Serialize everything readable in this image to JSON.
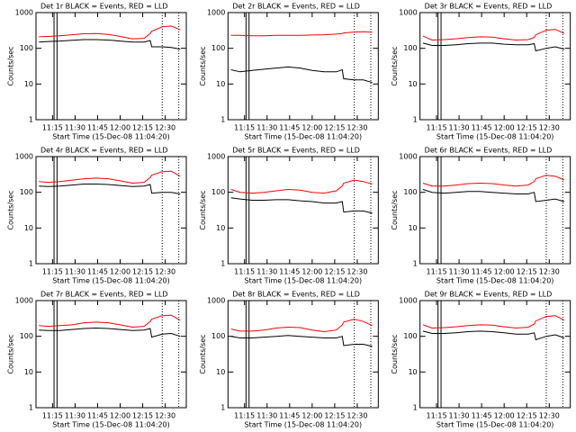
{
  "chart_data": [
    {
      "type": "line",
      "title": "Det 1r BLACK = Events, RED = LLD",
      "ylabel": "Counts/sec",
      "xlabel": "Start Time (15-Dec-08 11:04:20)",
      "log_y": true,
      "ylim": [
        1,
        1000
      ],
      "yticks": [
        1,
        10,
        100,
        1000
      ],
      "xlim": [
        "11:04",
        "12:44"
      ],
      "xticks": [
        "11:15",
        "11:30",
        "11:45",
        "12:00",
        "12:15",
        "12:30"
      ],
      "solid_lines": [
        "11:16",
        "11:18"
      ],
      "dotted_lines": [
        "12:28",
        "12:39"
      ],
      "x": [
        "11:06",
        "11:12",
        "11:20",
        "11:28",
        "11:36",
        "11:44",
        "11:52",
        "12:00",
        "12:08",
        "12:16",
        "12:20",
        "12:21",
        "12:28",
        "12:34",
        "12:40"
      ],
      "series": [
        {
          "color": "#000000",
          "values": [
            150,
            155,
            160,
            168,
            175,
            175,
            170,
            160,
            150,
            150,
            165,
            110,
            110,
            105,
            95
          ]
        },
        {
          "color": "#ff0000",
          "values": [
            210,
            215,
            225,
            240,
            255,
            260,
            245,
            215,
            185,
            190,
            260,
            300,
            400,
            420,
            330
          ]
        }
      ]
    },
    {
      "type": "line",
      "title": "Det 2r BLACK = Events, RED = LLD",
      "ylabel": "Counts/sec",
      "xlabel": "Start Time (15-Dec-08 11:04:20)",
      "log_y": true,
      "ylim": [
        1,
        1000
      ],
      "yticks": [
        1,
        10,
        100,
        1000
      ],
      "xlim": [
        "11:04",
        "12:44"
      ],
      "xticks": [
        "11:15",
        "11:30",
        "11:45",
        "12:00",
        "12:15",
        "12:30"
      ],
      "solid_lines": [
        "11:16",
        "11:18"
      ],
      "dotted_lines": [
        "12:28",
        "12:39"
      ],
      "x": [
        "11:06",
        "11:12",
        "11:20",
        "11:28",
        "11:36",
        "11:44",
        "11:52",
        "12:00",
        "12:08",
        "12:16",
        "12:20",
        "12:21",
        "12:28",
        "12:34",
        "12:40"
      ],
      "series": [
        {
          "color": "#000000",
          "values": [
            25,
            22,
            24,
            26,
            28,
            30,
            28,
            24,
            22,
            22,
            25,
            14,
            13,
            13,
            11
          ]
        },
        {
          "color": "#ff0000",
          "values": [
            230,
            230,
            225,
            225,
            230,
            230,
            230,
            235,
            240,
            250,
            260,
            270,
            285,
            290,
            280
          ]
        }
      ]
    },
    {
      "type": "line",
      "title": "Det 3r BLACK = Events, RED = LLD",
      "ylabel": "Counts/sec",
      "xlabel": "Start Time (15-Dec-08 11:04:20)",
      "log_y": true,
      "ylim": [
        1,
        1000
      ],
      "yticks": [
        1,
        10,
        100,
        1000
      ],
      "xlim": [
        "11:04",
        "12:44"
      ],
      "xticks": [
        "11:15",
        "11:30",
        "11:45",
        "12:00",
        "12:15",
        "12:30"
      ],
      "solid_lines": [
        "11:16",
        "11:18"
      ],
      "dotted_lines": [
        "12:28",
        "12:39"
      ],
      "x": [
        "11:06",
        "11:12",
        "11:20",
        "11:28",
        "11:36",
        "11:44",
        "11:52",
        "12:00",
        "12:08",
        "12:16",
        "12:20",
        "12:21",
        "12:28",
        "12:34",
        "12:40"
      ],
      "series": [
        {
          "color": "#000000",
          "values": [
            140,
            120,
            120,
            125,
            135,
            140,
            140,
            130,
            125,
            125,
            135,
            85,
            100,
            110,
            95
          ]
        },
        {
          "color": "#ff0000",
          "values": [
            220,
            170,
            175,
            185,
            200,
            210,
            205,
            185,
            170,
            175,
            200,
            240,
            320,
            340,
            260
          ]
        }
      ]
    },
    {
      "type": "line",
      "title": "Det 4r BLACK = Events, RED = LLD",
      "ylabel": "Counts/sec",
      "xlabel": "Start Time (15-Dec-08 11:04:20)",
      "log_y": true,
      "ylim": [
        1,
        1000
      ],
      "yticks": [
        1,
        10,
        100,
        1000
      ],
      "xlim": [
        "11:04",
        "12:44"
      ],
      "xticks": [
        "11:15",
        "11:30",
        "11:45",
        "12:00",
        "12:15",
        "12:30"
      ],
      "solid_lines": [
        "11:16",
        "11:18"
      ],
      "dotted_lines": [
        "12:28",
        "12:39"
      ],
      "x": [
        "11:06",
        "11:12",
        "11:20",
        "11:28",
        "11:36",
        "11:44",
        "11:52",
        "12:00",
        "12:08",
        "12:16",
        "12:20",
        "12:21",
        "12:28",
        "12:34",
        "12:40"
      ],
      "series": [
        {
          "color": "#000000",
          "values": [
            150,
            145,
            150,
            160,
            170,
            170,
            165,
            155,
            145,
            150,
            165,
            95,
            100,
            100,
            90
          ]
        },
        {
          "color": "#ff0000",
          "values": [
            200,
            190,
            200,
            220,
            240,
            250,
            240,
            210,
            180,
            190,
            260,
            300,
            380,
            390,
            280
          ]
        }
      ]
    },
    {
      "type": "line",
      "title": "Det 5r BLACK = Events, RED = LLD",
      "ylabel": "Counts/sec",
      "xlabel": "Start Time (15-Dec-08 11:04:20)",
      "log_y": true,
      "ylim": [
        1,
        1000
      ],
      "yticks": [
        1,
        10,
        100,
        1000
      ],
      "xlim": [
        "11:04",
        "12:44"
      ],
      "xticks": [
        "11:15",
        "11:30",
        "11:45",
        "12:00",
        "12:15",
        "12:30"
      ],
      "solid_lines": [
        "11:16",
        "11:18"
      ],
      "dotted_lines": [
        "12:28",
        "12:39"
      ],
      "x": [
        "11:06",
        "11:12",
        "11:20",
        "11:28",
        "11:36",
        "11:44",
        "11:52",
        "12:00",
        "12:08",
        "12:16",
        "12:20",
        "12:21",
        "12:28",
        "12:34",
        "12:40"
      ],
      "series": [
        {
          "color": "#000000",
          "values": [
            70,
            65,
            60,
            60,
            62,
            62,
            58,
            55,
            50,
            50,
            55,
            28,
            30,
            30,
            26
          ]
        },
        {
          "color": "#ff0000",
          "values": [
            120,
            100,
            95,
            100,
            110,
            120,
            115,
            100,
            95,
            110,
            150,
            180,
            220,
            200,
            170
          ]
        }
      ]
    },
    {
      "type": "line",
      "title": "Det 6r BLACK = Events, RED = LLD",
      "ylabel": "Counts/sec",
      "xlabel": "Start Time (15-Dec-08 11:04:20)",
      "log_y": true,
      "ylim": [
        1,
        1000
      ],
      "yticks": [
        1,
        10,
        100,
        1000
      ],
      "xlim": [
        "11:04",
        "12:44"
      ],
      "xticks": [
        "11:15",
        "11:30",
        "11:45",
        "12:00",
        "12:15",
        "12:30"
      ],
      "solid_lines": [
        "11:16",
        "11:18"
      ],
      "dotted_lines": [
        "12:28",
        "12:39"
      ],
      "x": [
        "11:06",
        "11:12",
        "11:20",
        "11:28",
        "11:36",
        "11:44",
        "11:52",
        "12:00",
        "12:08",
        "12:16",
        "12:20",
        "12:21",
        "12:28",
        "12:34",
        "12:40"
      ],
      "series": [
        {
          "color": "#000000",
          "values": [
            120,
            100,
            95,
            100,
            105,
            105,
            100,
            95,
            90,
            90,
            100,
            55,
            60,
            65,
            55
          ]
        },
        {
          "color": "#ff0000",
          "values": [
            180,
            150,
            150,
            160,
            175,
            180,
            175,
            160,
            150,
            160,
            200,
            240,
            300,
            280,
            220
          ]
        }
      ]
    },
    {
      "type": "line",
      "title": "Det 7r BLACK = Events, RED = LLD",
      "ylabel": "Counts/sec",
      "xlabel": "Start Time (15-Dec-08 11:04:20)",
      "log_y": true,
      "ylim": [
        1,
        1000
      ],
      "yticks": [
        1,
        10,
        100,
        1000
      ],
      "xlim": [
        "11:04",
        "12:44"
      ],
      "xticks": [
        "11:15",
        "11:30",
        "11:45",
        "12:00",
        "12:15",
        "12:30"
      ],
      "solid_lines": [
        "11:16",
        "11:18"
      ],
      "dotted_lines": [
        "12:28",
        "12:39"
      ],
      "x": [
        "11:06",
        "11:12",
        "11:20",
        "11:28",
        "11:36",
        "11:44",
        "11:52",
        "12:00",
        "12:08",
        "12:16",
        "12:20",
        "12:21",
        "12:28",
        "12:34",
        "12:40"
      ],
      "series": [
        {
          "color": "#000000",
          "values": [
            150,
            145,
            145,
            155,
            165,
            170,
            165,
            155,
            145,
            150,
            165,
            95,
            115,
            120,
            100
          ]
        },
        {
          "color": "#ff0000",
          "values": [
            200,
            190,
            200,
            210,
            240,
            250,
            240,
            210,
            180,
            190,
            260,
            300,
            380,
            390,
            280
          ]
        }
      ]
    },
    {
      "type": "line",
      "title": "Det 8r BLACK = Events, RED = LLD",
      "ylabel": "Counts/sec",
      "xlabel": "Start Time (15-Dec-08 11:04:20)",
      "log_y": true,
      "ylim": [
        1,
        1000
      ],
      "yticks": [
        1,
        10,
        100,
        1000
      ],
      "xlim": [
        "11:04",
        "12:44"
      ],
      "xticks": [
        "11:15",
        "11:30",
        "11:45",
        "12:00",
        "12:15",
        "12:30"
      ],
      "solid_lines": [
        "11:16",
        "11:18"
      ],
      "dotted_lines": [
        "12:28",
        "12:39"
      ],
      "x": [
        "11:06",
        "11:12",
        "11:20",
        "11:28",
        "11:36",
        "11:44",
        "11:52",
        "12:00",
        "12:08",
        "12:16",
        "12:20",
        "12:21",
        "12:28",
        "12:34",
        "12:40"
      ],
      "series": [
        {
          "color": "#000000",
          "values": [
            100,
            90,
            90,
            95,
            100,
            105,
            100,
            95,
            90,
            90,
            100,
            55,
            60,
            60,
            52
          ]
        },
        {
          "color": "#ff0000",
          "values": [
            160,
            140,
            140,
            150,
            170,
            180,
            175,
            150,
            135,
            150,
            210,
            250,
            300,
            260,
            200
          ]
        }
      ]
    },
    {
      "type": "line",
      "title": "Det 9r BLACK = Events, RED = LLD",
      "ylabel": "Counts/sec",
      "xlabel": "Start Time (15-Dec-08 11:04:20)",
      "log_y": true,
      "ylim": [
        1,
        1000
      ],
      "yticks": [
        1,
        10,
        100,
        1000
      ],
      "xlim": [
        "11:04",
        "12:44"
      ],
      "xticks": [
        "11:15",
        "11:30",
        "11:45",
        "12:00",
        "12:15",
        "12:30"
      ],
      "solid_lines": [
        "11:16",
        "11:18"
      ],
      "dotted_lines": [
        "12:28",
        "12:39"
      ],
      "x": [
        "11:06",
        "11:12",
        "11:20",
        "11:28",
        "11:36",
        "11:44",
        "11:52",
        "12:00",
        "12:08",
        "12:16",
        "12:20",
        "12:21",
        "12:28",
        "12:34",
        "12:40"
      ],
      "series": [
        {
          "color": "#000000",
          "values": [
            140,
            120,
            120,
            125,
            135,
            140,
            135,
            125,
            115,
            115,
            125,
            80,
            100,
            110,
            90
          ]
        },
        {
          "color": "#ff0000",
          "values": [
            210,
            170,
            175,
            185,
            200,
            210,
            205,
            185,
            170,
            180,
            220,
            270,
            360,
            380,
            280
          ]
        }
      ]
    }
  ]
}
